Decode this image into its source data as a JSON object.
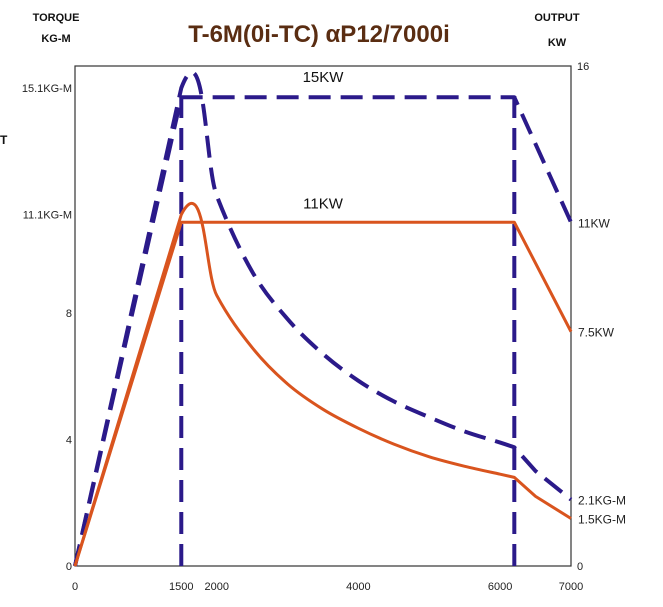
{
  "chart_data": {
    "type": "line",
    "title": "T-6M(0i-TC) αP12/7000i",
    "left_axis": {
      "label_line1": "TORQUE",
      "label_line2": "KG-M",
      "ylim": [
        0,
        15.1
      ]
    },
    "right_axis": {
      "label_line1": "OUTPUT",
      "label_line2": "KW",
      "ylim": [
        0,
        16
      ]
    },
    "xlim": [
      0,
      7000
    ],
    "x_ticks": [
      "0",
      "1500",
      "2000",
      "4000",
      "6000",
      "7000"
    ],
    "left_ticks": [
      {
        "value": 0,
        "label": "0"
      },
      {
        "value": 4,
        "label": "4"
      },
      {
        "value": 8,
        "label": "8"
      },
      {
        "value": 11.1,
        "label": "11.1KG-M"
      },
      {
        "value": 15.1,
        "label": "15.1KG-M"
      }
    ],
    "right_ticks": [
      {
        "value": 0,
        "label": "0"
      },
      {
        "value": 16,
        "label": "16"
      }
    ],
    "right_labels": [
      {
        "value": 11,
        "label": "11KW"
      },
      {
        "value": 7.5,
        "label": "7.5KW"
      },
      {
        "value": 2.1,
        "label": "2.1KG-M"
      },
      {
        "value": 1.5,
        "label": "1.5KG-M"
      }
    ],
    "inline_labels": [
      {
        "text": "15KW",
        "x": 3500,
        "y": 15.1
      },
      {
        "text": "11KW",
        "x": 3500,
        "y": 11.1
      }
    ],
    "edge_fragments": [
      "T"
    ],
    "series": [
      {
        "axis": "output",
        "style": "dashed",
        "color": "#2b1a8a",
        "x": [
          0,
          1500,
          6200,
          7000
        ],
        "y": [
          0,
          15,
          15,
          11
        ]
      },
      {
        "axis": "torque",
        "style": "dashed",
        "color": "#2b1a8a",
        "x": [
          0,
          1500,
          2000,
          2500,
          3000,
          3500,
          4000,
          4500,
          5000,
          5500,
          6000,
          6200,
          6500,
          7000
        ],
        "y": [
          0,
          15.1,
          11.7,
          9.3,
          7.8,
          6.7,
          5.85,
          5.2,
          4.7,
          4.25,
          3.9,
          3.75,
          3.0,
          2.1
        ]
      },
      {
        "axis": "output",
        "style": "solid",
        "color": "#d9541e",
        "x": [
          0,
          1500,
          6200,
          7000
        ],
        "y": [
          0,
          11,
          11,
          7.5
        ]
      },
      {
        "axis": "torque",
        "style": "solid",
        "color": "#d9541e",
        "x": [
          0,
          1500,
          2000,
          2500,
          3000,
          3500,
          4000,
          4500,
          5000,
          5500,
          6000,
          6200,
          6500,
          7000
        ],
        "y": [
          0,
          11.1,
          8.55,
          6.9,
          5.75,
          4.95,
          4.35,
          3.85,
          3.45,
          3.15,
          2.9,
          2.8,
          2.2,
          1.5
        ]
      }
    ],
    "vertical_markers": [
      {
        "x": 1500,
        "style": "dashed",
        "color": "#2b1a8a"
      },
      {
        "x": 6200,
        "style": "dashed",
        "color": "#2b1a8a"
      }
    ]
  }
}
